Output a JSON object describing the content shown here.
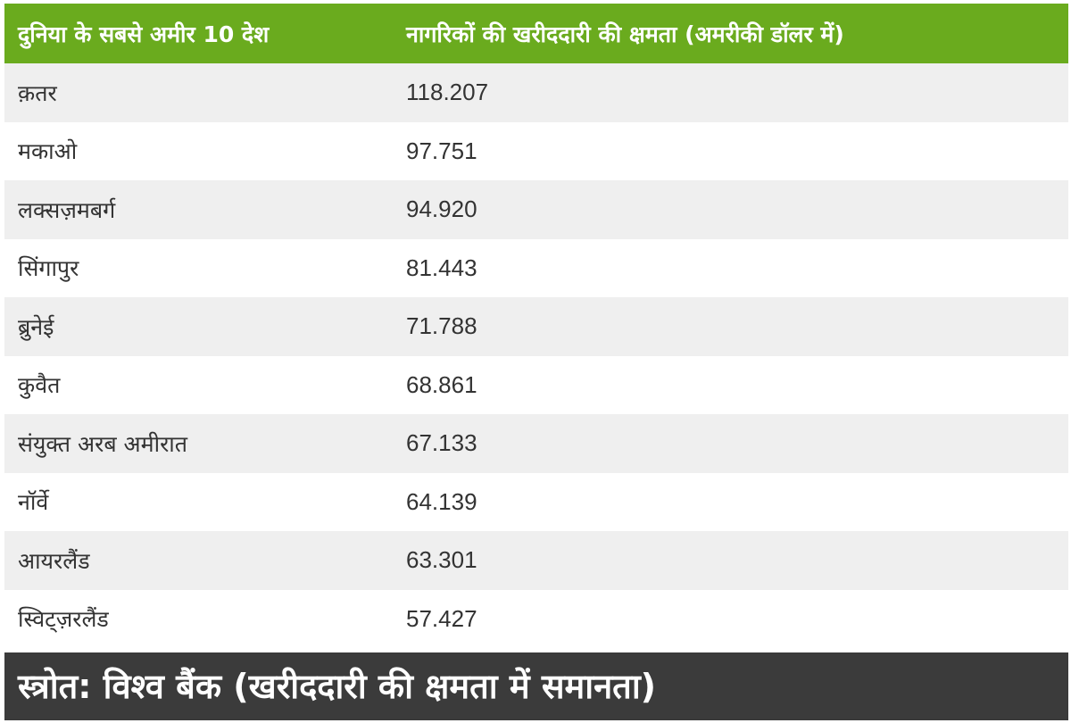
{
  "chart_data": {
    "type": "table",
    "columns": [
      "दुनिया के सबसे अमीर 10 देश",
      "नागरिकों की खरीददारी की क्षमता (अमरीकी डॉलर में)"
    ],
    "rows": [
      {
        "country": "क़तर",
        "value": "118.207"
      },
      {
        "country": "मकाओ",
        "value": "97.751"
      },
      {
        "country": "लक्सज़मबर्ग",
        "value": "94.920"
      },
      {
        "country": "सिंगापुर",
        "value": "81.443"
      },
      {
        "country": "ब्रुनेई",
        "value": "71.788"
      },
      {
        "country": "कुवैत",
        "value": "68.861"
      },
      {
        "country": "संयुक्त अरब अमीरात",
        "value": "67.133"
      },
      {
        "country": "नॉर्वे",
        "value": "64.139"
      },
      {
        "country": "आयरलैंड",
        "value": "63.301"
      },
      {
        "country": "स्विट्ज़रलैंड",
        "value": "57.427"
      }
    ],
    "source": "स्त्रोत: विश्व बैंक (खरीददारी की क्षमता में समानता)"
  },
  "colors": {
    "header_bg": "#6aab1e",
    "row_alt_bg": "#efefef",
    "source_bg": "#3b3b3b"
  }
}
